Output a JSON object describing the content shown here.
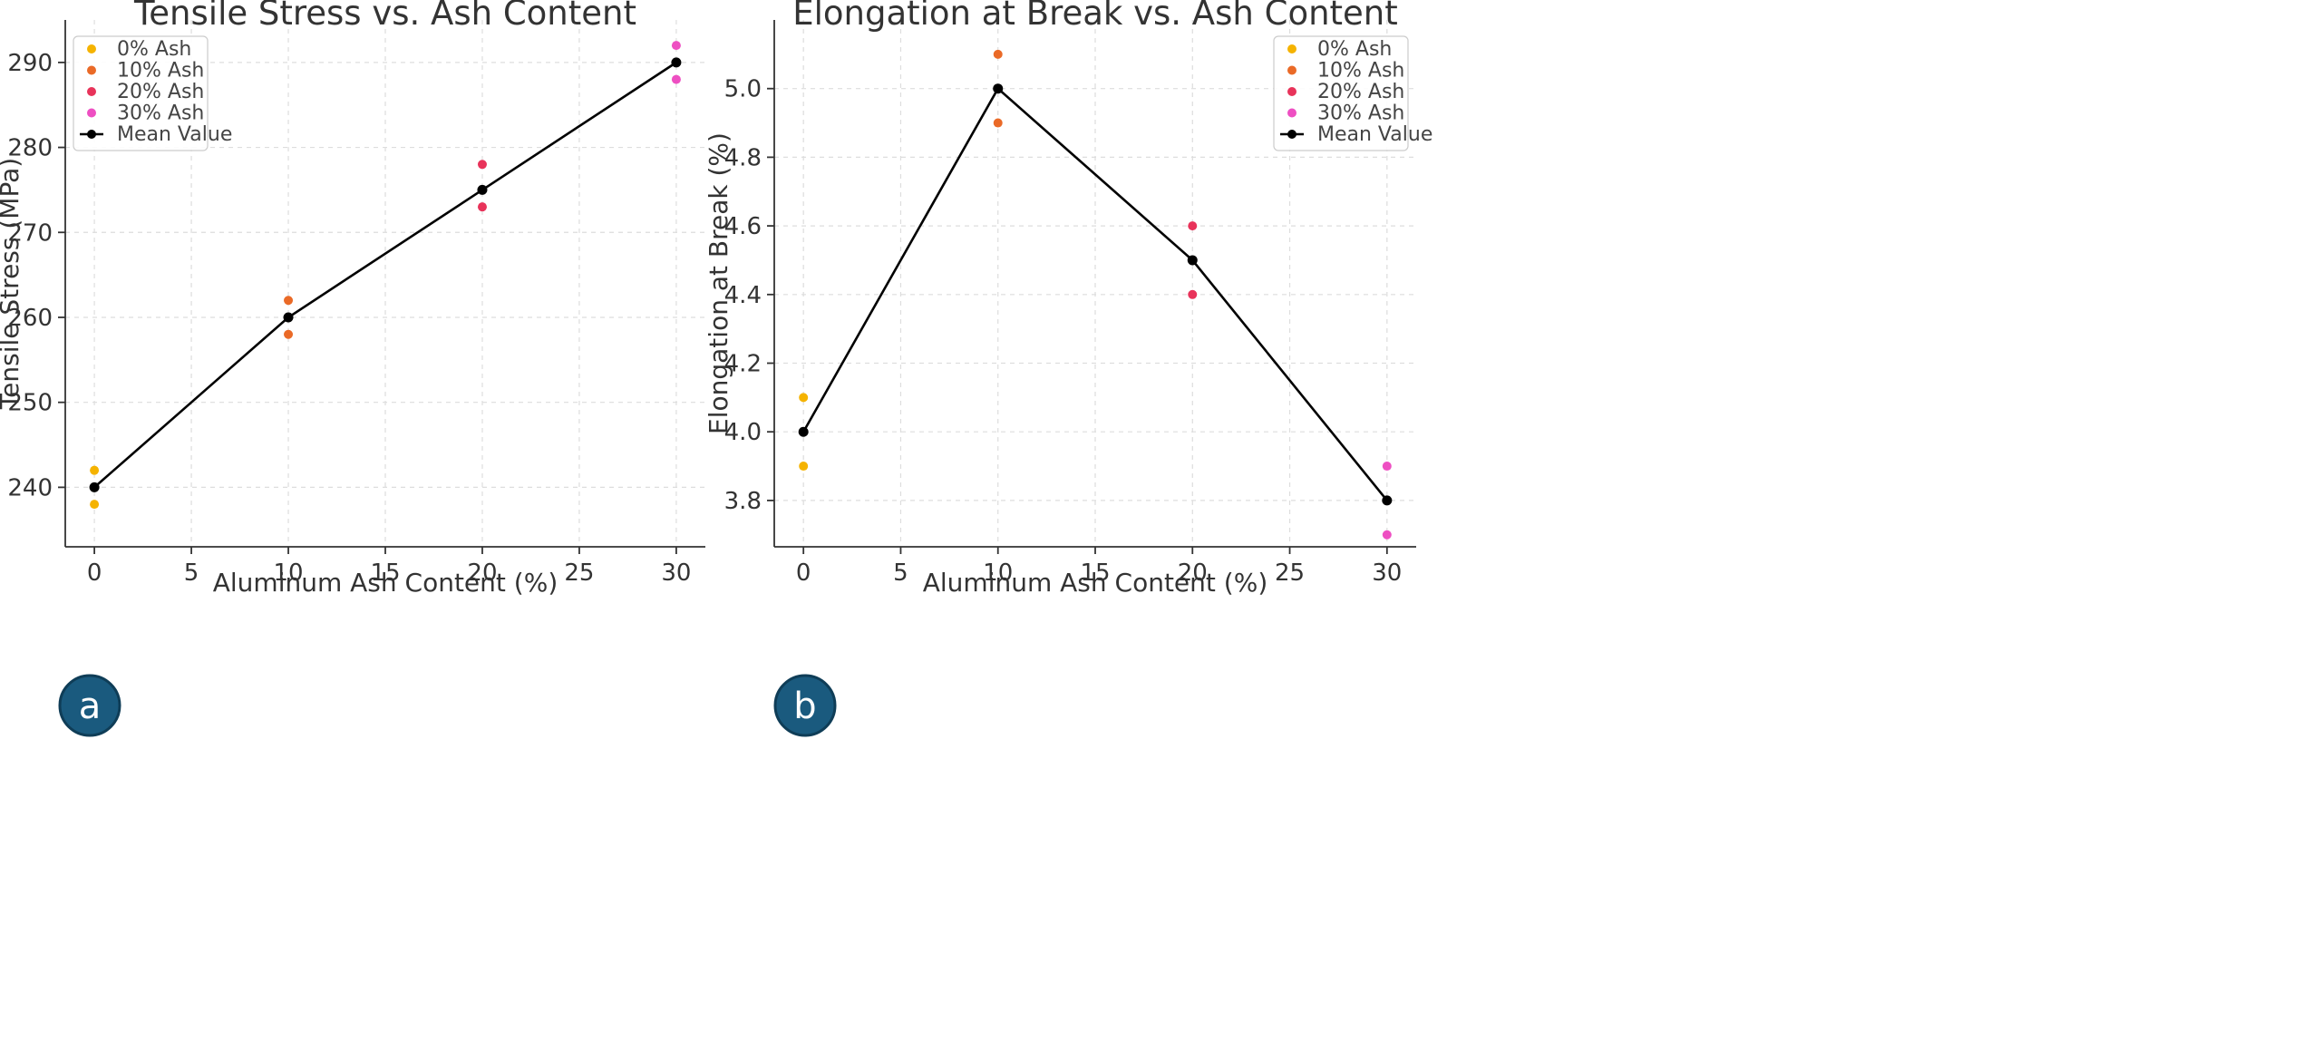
{
  "chart_data": [
    {
      "panel": "a",
      "type": "scatter",
      "title": "Tensile Stress vs. Ash Content",
      "xlabel": "Aluminum Ash Content (%)",
      "ylabel": "Tensile Stress (MPa)",
      "xlim": [
        -1.5,
        31.5
      ],
      "ylim": [
        233,
        295
      ],
      "xticks": [
        0,
        5,
        10,
        15,
        20,
        25,
        30
      ],
      "yticks": [
        240,
        250,
        260,
        270,
        280,
        290
      ],
      "grid": true,
      "legend_position": "top-left",
      "series": [
        {
          "name": "0% Ash",
          "color": "#f5b300",
          "points": [
            [
              0,
              242
            ],
            [
              0,
              238
            ]
          ]
        },
        {
          "name": "10% Ash",
          "color": "#ea6a27",
          "points": [
            [
              10,
              262
            ],
            [
              10,
              258
            ]
          ]
        },
        {
          "name": "20% Ash",
          "color": "#e8335a",
          "points": [
            [
              20,
              278
            ],
            [
              20,
              273
            ]
          ]
        },
        {
          "name": "30% Ash",
          "color": "#ee4fc2",
          "points": [
            [
              30,
              292
            ],
            [
              30,
              288
            ]
          ]
        },
        {
          "name": "Mean Value",
          "color": "#000000",
          "line": true,
          "points": [
            [
              0,
              240
            ],
            [
              10,
              260
            ],
            [
              20,
              275
            ],
            [
              30,
              290
            ]
          ]
        }
      ]
    },
    {
      "panel": "b",
      "type": "scatter",
      "title": "Elongation at Break vs. Ash Content",
      "xlabel": "Aluminum Ash Content (%)",
      "ylabel": "Elongation at Break (%)",
      "xlim": [
        -1.5,
        31.5
      ],
      "ylim": [
        3.665,
        5.2
      ],
      "xticks": [
        0,
        5,
        10,
        15,
        20,
        25,
        30
      ],
      "yticks": [
        "3.8",
        "4.0",
        "4.2",
        "4.4",
        "4.6",
        "4.8",
        "5.0"
      ],
      "grid": true,
      "legend_position": "top-right",
      "series": [
        {
          "name": "0% Ash",
          "color": "#f5b300",
          "points": [
            [
              0,
              4.1
            ],
            [
              0,
              3.9
            ]
          ]
        },
        {
          "name": "10% Ash",
          "color": "#ea6a27",
          "points": [
            [
              10,
              5.1
            ],
            [
              10,
              4.9
            ]
          ]
        },
        {
          "name": "20% Ash",
          "color": "#e8335a",
          "points": [
            [
              20,
              4.6
            ],
            [
              20,
              4.4
            ]
          ]
        },
        {
          "name": "30% Ash",
          "color": "#ee4fc2",
          "points": [
            [
              30,
              3.9
            ],
            [
              30,
              3.7
            ]
          ]
        },
        {
          "name": "Mean Value",
          "color": "#000000",
          "line": true,
          "points": [
            [
              0,
              4.0
            ],
            [
              10,
              5.0
            ],
            [
              20,
              4.5
            ],
            [
              30,
              3.8
            ]
          ]
        }
      ]
    }
  ],
  "badges": [
    "a",
    "b"
  ],
  "colors": {
    "badge_fill": "#1a5a7e",
    "badge_ring": "#0f3d57",
    "grid": "#dddddd",
    "axis": "#333333"
  }
}
